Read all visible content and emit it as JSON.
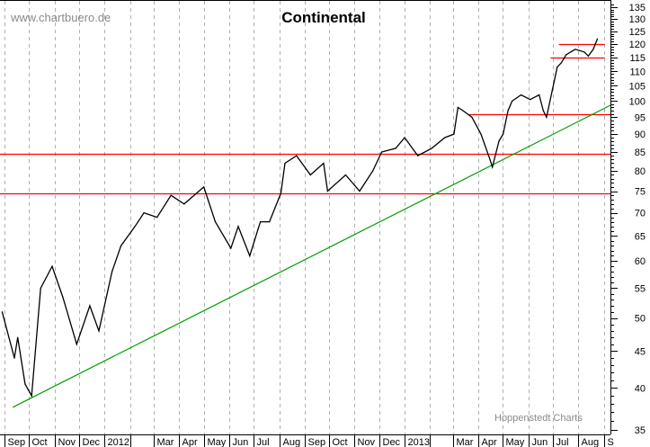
{
  "chart_data": {
    "type": "line",
    "title": "Continental",
    "watermark": "www.chartbuero.de",
    "credit": "Hoppenstedt Charts",
    "yscale": "log",
    "ylim": [
      35,
      135
    ],
    "y_ticks": [
      35,
      40,
      45,
      50,
      55,
      60,
      65,
      70,
      75,
      80,
      85,
      90,
      95,
      100,
      105,
      110,
      115,
      120,
      125,
      130,
      135
    ],
    "x_start": "2011-09-01",
    "x_end": "2013-09-08",
    "grid": "vertical dashed at month starts",
    "month_labels": [
      {
        "label": "Sep",
        "date": "2011-09-01"
      },
      {
        "label": "Oct",
        "date": "2011-10-01"
      },
      {
        "label": "Nov",
        "date": "2011-11-01"
      },
      {
        "label": "Dec",
        "date": "2011-12-01"
      },
      {
        "label": "2012",
        "date": "2012-01-01"
      },
      {
        "label": "",
        "date": "2012-02-01"
      },
      {
        "label": "Mar",
        "date": "2012-03-01"
      },
      {
        "label": "Apr",
        "date": "2012-04-01"
      },
      {
        "label": "May",
        "date": "2012-05-01"
      },
      {
        "label": "Jun",
        "date": "2012-06-01"
      },
      {
        "label": "Jul",
        "date": "2012-07-01"
      },
      {
        "label": "Aug",
        "date": "2012-08-01"
      },
      {
        "label": "Sep",
        "date": "2012-09-01"
      },
      {
        "label": "Oct",
        "date": "2012-10-01"
      },
      {
        "label": "Nov",
        "date": "2012-11-01"
      },
      {
        "label": "Dec",
        "date": "2012-12-01"
      },
      {
        "label": "2013",
        "date": "2013-01-01"
      },
      {
        "label": "",
        "date": "2013-02-01"
      },
      {
        "label": "Mar",
        "date": "2013-03-01"
      },
      {
        "label": "Apr",
        "date": "2013-04-01"
      },
      {
        "label": "May",
        "date": "2013-05-01"
      },
      {
        "label": "Jun",
        "date": "2013-06-01"
      },
      {
        "label": "Jul",
        "date": "2013-07-01"
      },
      {
        "label": "Aug",
        "date": "2013-08-01"
      },
      {
        "label": "S",
        "date": "2013-09-01"
      }
    ],
    "series": [
      {
        "name": "Continental",
        "color": "#000000",
        "points": [
          [
            "2011-08-28",
            51
          ],
          [
            "2011-09-12",
            44
          ],
          [
            "2011-09-16",
            47
          ],
          [
            "2011-09-25",
            40.5
          ],
          [
            "2011-10-03",
            39
          ],
          [
            "2011-10-14",
            55
          ],
          [
            "2011-10-28",
            59
          ],
          [
            "2011-11-10",
            53.5
          ],
          [
            "2011-11-27",
            46
          ],
          [
            "2011-12-13",
            52
          ],
          [
            "2011-12-24",
            48
          ],
          [
            "2012-01-09",
            58
          ],
          [
            "2012-01-20",
            63
          ],
          [
            "2012-02-06",
            67
          ],
          [
            "2012-02-17",
            70
          ],
          [
            "2012-03-04",
            69
          ],
          [
            "2012-03-21",
            74
          ],
          [
            "2012-04-06",
            72
          ],
          [
            "2012-04-30",
            76
          ],
          [
            "2012-05-14",
            68
          ],
          [
            "2012-06-02",
            62.5
          ],
          [
            "2012-06-11",
            67
          ],
          [
            "2012-06-25",
            61
          ],
          [
            "2012-07-08",
            68
          ],
          [
            "2012-07-19",
            68
          ],
          [
            "2012-08-02",
            74.5
          ],
          [
            "2012-08-07",
            82
          ],
          [
            "2012-08-21",
            84
          ],
          [
            "2012-09-07",
            79
          ],
          [
            "2012-09-23",
            82
          ],
          [
            "2012-09-28",
            75
          ],
          [
            "2012-10-20",
            79
          ],
          [
            "2012-11-06",
            75
          ],
          [
            "2012-11-22",
            80
          ],
          [
            "2012-12-03",
            85
          ],
          [
            "2012-12-20",
            86
          ],
          [
            "2012-12-31",
            89
          ],
          [
            "2013-01-16",
            84
          ],
          [
            "2013-02-02",
            86
          ],
          [
            "2013-02-18",
            89
          ],
          [
            "2013-03-01",
            90
          ],
          [
            "2013-03-06",
            98
          ],
          [
            "2013-03-12",
            97
          ],
          [
            "2013-03-23",
            95
          ],
          [
            "2013-04-03",
            90
          ],
          [
            "2013-04-14",
            83
          ],
          [
            "2013-04-17",
            81
          ],
          [
            "2013-04-25",
            88
          ],
          [
            "2013-04-30",
            90
          ],
          [
            "2013-05-06",
            97
          ],
          [
            "2013-05-11",
            100
          ],
          [
            "2013-05-22",
            102
          ],
          [
            "2013-06-02",
            100.5
          ],
          [
            "2013-06-13",
            102
          ],
          [
            "2013-06-18",
            97
          ],
          [
            "2013-06-22",
            95
          ],
          [
            "2013-06-29",
            103.5
          ],
          [
            "2013-07-05",
            111.5
          ],
          [
            "2013-07-10",
            113
          ],
          [
            "2013-07-16",
            116
          ],
          [
            "2013-07-27",
            118
          ],
          [
            "2013-08-07",
            117
          ],
          [
            "2013-08-12",
            115.5
          ],
          [
            "2013-08-18",
            118
          ],
          [
            "2013-08-23",
            122
          ]
        ]
      }
    ],
    "horizontal_lines": [
      {
        "name": "resistance-84",
        "value": 84.5,
        "from": "2011-08-25",
        "to": "2013-09-08",
        "color": "#ff0000"
      },
      {
        "name": "support-74",
        "value": 74.5,
        "from": "2011-08-25",
        "to": "2013-09-08",
        "color": "#ff0000"
      },
      {
        "name": "support-96",
        "value": 96,
        "from": "2013-03-20",
        "to": "2013-09-08",
        "color": "#ff0000"
      },
      {
        "name": "range-low-115",
        "value": 115,
        "from": "2013-06-27",
        "to": "2013-09-01",
        "color": "#ff0000"
      },
      {
        "name": "range-high-120",
        "value": 120,
        "from": "2013-07-07",
        "to": "2013-09-01",
        "color": "#ff0000"
      }
    ],
    "trendline": {
      "color": "#00a000",
      "from": [
        "2011-09-10",
        37.6
      ],
      "to": [
        "2013-09-08",
        98.7
      ]
    }
  }
}
